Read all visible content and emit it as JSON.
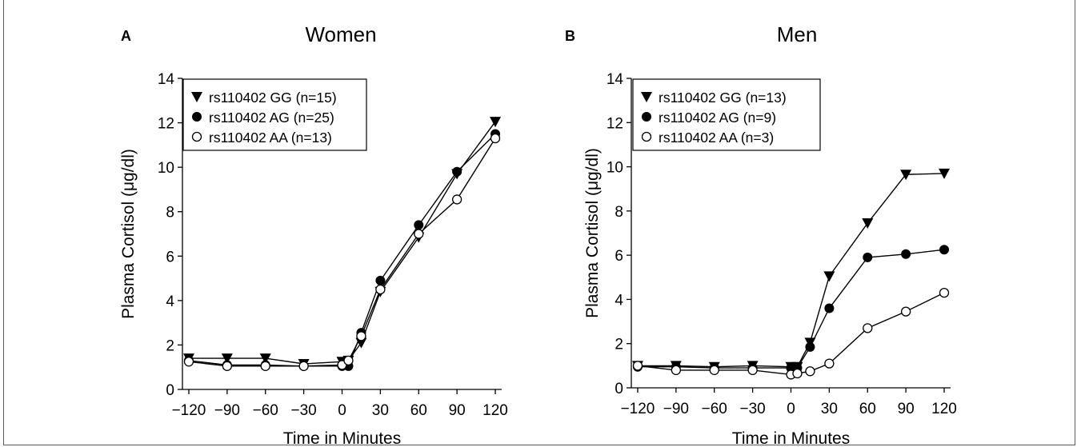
{
  "chart_data": [
    {
      "type": "line",
      "panel_label": "A",
      "title": "Women",
      "xlabel": "Time in Minutes",
      "ylabel": "Plasma Cortisol (μg/dl)",
      "xlim": [
        -125,
        125
      ],
      "ylim": [
        0,
        14
      ],
      "xticks": [
        -120,
        -90,
        -60,
        -30,
        0,
        30,
        60,
        90,
        120
      ],
      "yticks": [
        0,
        2,
        4,
        6,
        8,
        10,
        12,
        14
      ],
      "grid": false,
      "legend_position": "top-left",
      "series": [
        {
          "name": "rs110402 GG (n=15)",
          "marker": "triangle-down",
          "x": [
            -120,
            -90,
            -60,
            -30,
            0,
            5,
            15,
            30,
            60,
            90,
            120
          ],
          "values": [
            1.4,
            1.4,
            1.4,
            1.15,
            1.25,
            1.3,
            2.1,
            4.4,
            6.85,
            9.7,
            12.05
          ]
        },
        {
          "name": "rs110402 AG (n=25)",
          "marker": "filled-circle",
          "x": [
            -120,
            -90,
            -60,
            -30,
            0,
            5,
            15,
            30,
            60,
            90,
            120
          ],
          "values": [
            1.3,
            1.1,
            1.1,
            1.05,
            1.05,
            1.05,
            2.55,
            4.9,
            7.4,
            9.8,
            11.5
          ]
        },
        {
          "name": "rs110402 AA (n=13)",
          "marker": "open-circle",
          "x": [
            -120,
            -90,
            -60,
            -30,
            0,
            5,
            15,
            30,
            60,
            90,
            120
          ],
          "values": [
            1.25,
            1.05,
            1.05,
            1.05,
            1.1,
            1.3,
            2.4,
            4.5,
            7.0,
            8.55,
            11.3
          ]
        }
      ]
    },
    {
      "type": "line",
      "panel_label": "B",
      "title": "Men",
      "xlabel": "Time in Minutes",
      "ylabel": "Plasma Cortisol (μg/dl)",
      "xlim": [
        -125,
        125
      ],
      "ylim": [
        0,
        14
      ],
      "xticks": [
        -120,
        -90,
        -60,
        -30,
        0,
        30,
        60,
        90,
        120
      ],
      "yticks": [
        0,
        2,
        4,
        6,
        8,
        10,
        12,
        14
      ],
      "grid": false,
      "legend_position": "top-left",
      "series": [
        {
          "name": "rs110402 GG (n=13)",
          "marker": "triangle-down",
          "x": [
            -120,
            -90,
            -60,
            -30,
            0,
            5,
            15,
            30,
            60,
            90,
            120
          ],
          "values": [
            1.0,
            1.0,
            0.95,
            1.0,
            0.95,
            0.95,
            2.05,
            5.05,
            7.45,
            9.65,
            9.7
          ]
        },
        {
          "name": "rs110402 AG (n=9)",
          "marker": "filled-circle",
          "x": [
            -120,
            -90,
            -60,
            -30,
            0,
            5,
            15,
            30,
            60,
            90,
            120
          ],
          "values": [
            0.95,
            0.95,
            0.9,
            0.9,
            0.9,
            0.9,
            1.85,
            3.6,
            5.9,
            6.05,
            6.25
          ]
        },
        {
          "name": "rs110402 AA (n=3)",
          "marker": "open-circle",
          "x": [
            -120,
            -90,
            -60,
            -30,
            0,
            5,
            15,
            30,
            60,
            90,
            120
          ],
          "values": [
            1.0,
            0.8,
            0.8,
            0.8,
            0.6,
            0.65,
            0.75,
            1.1,
            2.7,
            3.45,
            4.3
          ]
        }
      ]
    }
  ]
}
